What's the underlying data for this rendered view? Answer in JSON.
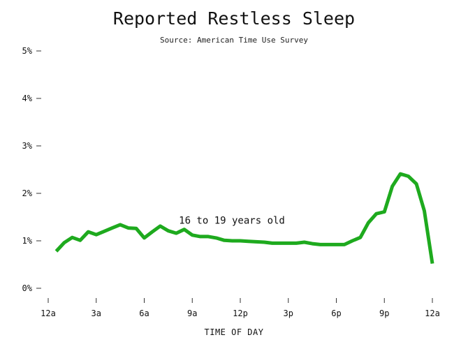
{
  "chart_data": {
    "type": "line",
    "title": "Reported Restless Sleep",
    "subtitle": "Source: American Time Use Survey",
    "xlabel": "TIME OF DAY",
    "ylabel": "",
    "xlim": [
      0,
      24
    ],
    "ylim": [
      0,
      5
    ],
    "x_ticks": [
      0,
      3,
      6,
      9,
      12,
      15,
      18,
      21,
      24
    ],
    "x_tick_labels": [
      "12a",
      "3a",
      "6a",
      "9a",
      "12p",
      "3p",
      "6p",
      "9p",
      "12a"
    ],
    "y_ticks": [
      0,
      1,
      2,
      3,
      4,
      5
    ],
    "y_tick_labels": [
      "0%",
      "1%",
      "2%",
      "3%",
      "4%",
      "5%"
    ],
    "grid": false,
    "annotation": {
      "text": "16 to 19 years old",
      "x": 12,
      "y": 1.33
    },
    "series": [
      {
        "color": "#1eaa1e",
        "x": [
          0.5,
          1.0,
          1.5,
          2.0,
          2.5,
          3.0,
          3.5,
          4.0,
          4.5,
          5.0,
          5.5,
          6.0,
          6.5,
          7.0,
          7.5,
          8.0,
          8.5,
          9.0,
          9.5,
          10.0,
          10.5,
          11.0,
          11.5,
          12.0,
          12.5,
          13.0,
          13.5,
          14.0,
          14.5,
          15.0,
          15.5,
          16.0,
          16.5,
          17.0,
          17.5,
          18.0,
          18.5,
          19.0,
          19.5,
          20.0,
          20.5,
          21.0,
          21.5,
          22.0,
          22.5,
          23.0,
          23.5,
          24.0
        ],
        "y": [
          0.78,
          0.96,
          1.07,
          1.01,
          1.19,
          1.13,
          1.2,
          1.27,
          1.34,
          1.27,
          1.26,
          1.06,
          1.19,
          1.31,
          1.21,
          1.16,
          1.24,
          1.12,
          1.09,
          1.09,
          1.06,
          1.01,
          1.0,
          1.0,
          0.99,
          0.98,
          0.97,
          0.95,
          0.95,
          0.95,
          0.95,
          0.97,
          0.94,
          0.92,
          0.92,
          0.92,
          0.92,
          1.0,
          1.07,
          1.38,
          1.57,
          1.61,
          2.15,
          2.41,
          2.36,
          2.2,
          1.63,
          0.52
        ]
      }
    ]
  }
}
